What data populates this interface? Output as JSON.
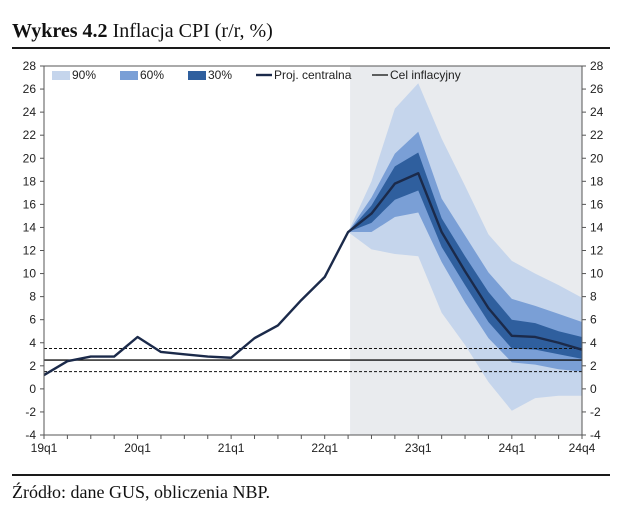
{
  "header": {
    "prefix": "Wykres 4.2",
    "title": "Inflacja CPI (r/r, %)"
  },
  "footer": {
    "source": "Źródło: dane GUS, obliczenia NBP."
  },
  "colors": {
    "band90": "#c5d5ec",
    "band60": "#7a9fd6",
    "band30": "#2f5f9e",
    "central": "#1b2a4a",
    "target": "#111111",
    "forecast_bg": "#e9ebee"
  },
  "chart_data": {
    "type": "area",
    "title": "Inflacja CPI (r/r, %)",
    "xlabel": "",
    "ylabel": "",
    "ylim": [
      -4,
      28
    ],
    "yticks": [
      -4,
      -2,
      0,
      2,
      4,
      6,
      8,
      10,
      12,
      14,
      16,
      18,
      20,
      22,
      24,
      26,
      28
    ],
    "x_ticks": [
      "19q1",
      "20q1",
      "21q1",
      "22q1",
      "23q1",
      "24q1",
      "24q4"
    ],
    "quarters": [
      "19q1",
      "19q2",
      "19q3",
      "19q4",
      "20q1",
      "20q2",
      "20q3",
      "20q4",
      "21q1",
      "21q2",
      "21q3",
      "21q4",
      "22q1",
      "22q2",
      "22q3",
      "22q4",
      "23q1",
      "23q2",
      "23q3",
      "23q4",
      "24q1",
      "24q2",
      "24q3",
      "24q4"
    ],
    "grid": false,
    "legend_position": "top",
    "legend": [
      "90%",
      "60%",
      "30%",
      "Proj. centralna",
      "Cel inflacyjny"
    ],
    "forecast_start": "22q2",
    "history": {
      "name": "Proj. centralna",
      "x": [
        "19q1",
        "19q2",
        "19q3",
        "19q4",
        "20q1",
        "20q2",
        "20q3",
        "20q4",
        "21q1",
        "21q2",
        "21q3",
        "21q4",
        "22q1",
        "22q2"
      ],
      "values": [
        1.2,
        2.4,
        2.8,
        2.8,
        4.5,
        3.2,
        3.0,
        2.8,
        2.7,
        4.4,
        5.5,
        7.7,
        9.7,
        13.6
      ]
    },
    "projection": {
      "x": [
        "22q2",
        "22q3",
        "22q4",
        "23q1",
        "23q2",
        "23q3",
        "23q4",
        "24q1",
        "24q2",
        "24q3",
        "24q4"
      ],
      "central": [
        13.6,
        15.2,
        17.8,
        18.7,
        13.6,
        10.2,
        7.0,
        4.6,
        4.5,
        4.0,
        3.4
      ],
      "band30": {
        "lower": [
          13.6,
          14.4,
          16.4,
          17.2,
          12.3,
          9.0,
          5.8,
          3.5,
          3.4,
          3.0,
          2.6
        ],
        "upper": [
          13.6,
          15.9,
          19.3,
          20.5,
          14.8,
          11.5,
          8.4,
          6.0,
          5.7,
          5.0,
          4.5
        ]
      },
      "band60": {
        "lower": [
          13.6,
          13.6,
          14.9,
          15.3,
          11.0,
          7.5,
          4.4,
          2.3,
          2.1,
          1.7,
          1.5
        ],
        "upper": [
          13.6,
          16.6,
          20.4,
          22.3,
          16.5,
          13.3,
          10.1,
          7.8,
          7.2,
          6.5,
          5.8
        ]
      },
      "band90": {
        "lower": [
          13.6,
          12.1,
          11.7,
          11.5,
          6.6,
          3.8,
          0.6,
          -1.9,
          -0.8,
          -0.6,
          -0.6
        ],
        "upper": [
          13.6,
          18.0,
          24.3,
          26.5,
          21.7,
          17.6,
          13.4,
          11.1,
          10.0,
          9.0,
          7.9
        ]
      }
    },
    "target": {
      "name": "Cel inflacyjny",
      "value": 2.5,
      "tolerance": [
        1.5,
        3.5
      ]
    }
  }
}
